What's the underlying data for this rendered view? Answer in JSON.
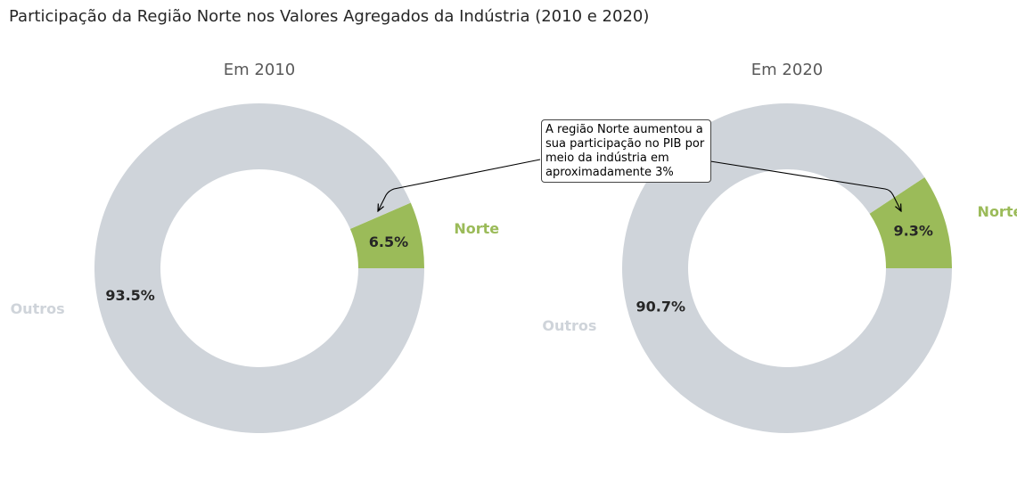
{
  "title": "Participação da Região Norte nos Valores Agregados da Indústria (2010 e 2020)",
  "colors": {
    "norte": "#9bbb59",
    "outros": "#cfd4da",
    "title": "#595959",
    "pct": "#262626"
  },
  "annotation": "A região Norte aumentou a sua participação no PIB por meio da indústria em aproximadamente 3%",
  "chart_data": [
    {
      "type": "pie",
      "title": "Em 2010",
      "slices": [
        {
          "label": "Norte",
          "value": 6.5,
          "pct_label": "6.5%"
        },
        {
          "label": "Outros",
          "value": 93.5,
          "pct_label": "93.5%"
        }
      ]
    },
    {
      "type": "pie",
      "title": "Em 2020",
      "slices": [
        {
          "label": "Norte",
          "value": 9.3,
          "pct_label": "9.3%"
        },
        {
          "label": "Outros",
          "value": 90.7,
          "pct_label": "90.7%"
        }
      ]
    }
  ]
}
